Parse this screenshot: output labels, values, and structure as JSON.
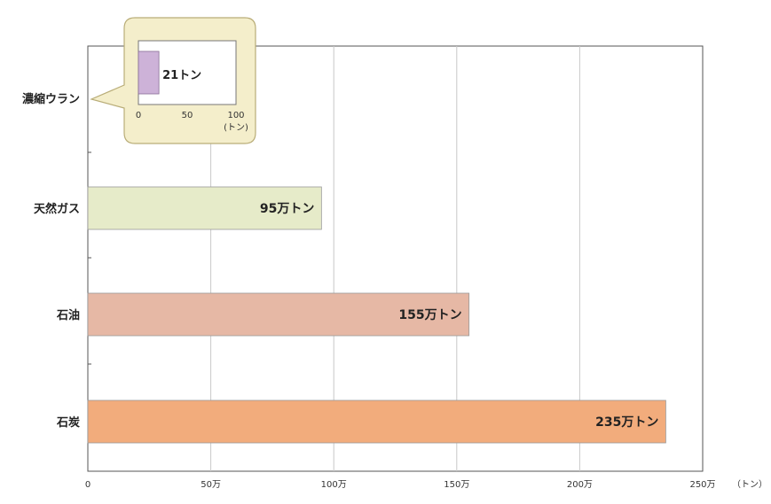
{
  "chart_data": {
    "type": "bar",
    "orientation": "horizontal",
    "categories": [
      "濃縮ウラン",
      "天然ガス",
      "石油",
      "石炭"
    ],
    "values": [
      21,
      950000,
      1550000,
      2350000
    ],
    "data_labels": [
      "",
      "95万トン",
      "155万トン",
      "235万トン"
    ],
    "colors": [
      "#cdb2d8",
      "#e6ebc9",
      "#e6b8a5",
      "#f2ac7c"
    ],
    "xlim": [
      0,
      2500000
    ],
    "x_ticks": [
      0,
      500000,
      1000000,
      1500000,
      2000000,
      2500000
    ],
    "x_tick_labels": [
      "0",
      "50万",
      "100万",
      "150万",
      "200万",
      "250万"
    ],
    "x_unit": "（トン）",
    "grid": true,
    "inset": {
      "category": "濃縮ウラン",
      "value": 21,
      "label": "21トン",
      "xlim": [
        0,
        100
      ],
      "ticks": [
        0,
        50,
        100
      ],
      "tick_labels": [
        "0",
        "50",
        "100"
      ],
      "unit": "(トン)",
      "bubble_color": "#f4eecb",
      "bar_color": "#cdb2d8"
    }
  }
}
